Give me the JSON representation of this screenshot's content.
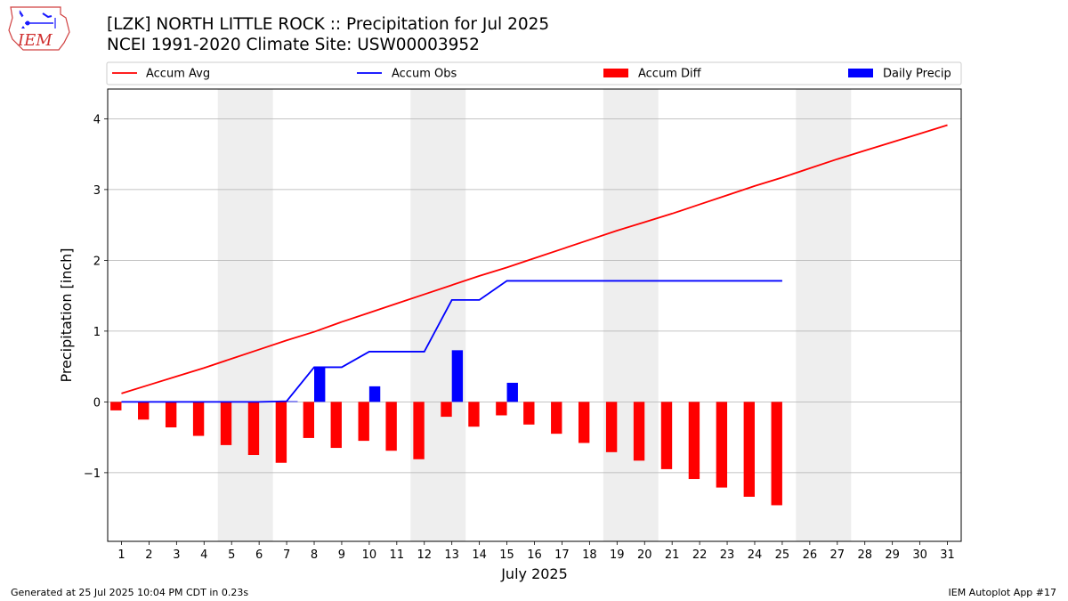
{
  "title": "[LZK] NORTH LITTLE ROCK :: Precipitation for Jul 2025",
  "subtitle": "NCEI 1991-2020 Climate Site: USW00003952",
  "footer_left": "Generated at 25 Jul 2025 10:04 PM CDT in 0.23s",
  "footer_right": "IEM Autoplot App #17",
  "logo_text": "IEM",
  "chart_data": {
    "type": "bar",
    "xlabel": "July 2025",
    "ylabel": "Precipitation [inch]",
    "xlim": [
      0.5,
      31.5
    ],
    "ylim": [
      -1.97,
      4.42
    ],
    "yticks": [
      -1,
      0,
      1,
      2,
      3,
      4
    ],
    "grid": "horizontal",
    "legend_position": "top, horizontal above plot",
    "weekend_shaded_days": [
      5,
      6,
      12,
      13,
      19,
      20,
      26,
      27
    ],
    "days": [
      1,
      2,
      3,
      4,
      5,
      6,
      7,
      8,
      9,
      10,
      11,
      12,
      13,
      14,
      15,
      16,
      17,
      18,
      19,
      20,
      21,
      22,
      23,
      24,
      25,
      26,
      27,
      28,
      29,
      30,
      31
    ],
    "series": [
      {
        "name": "Accum Avg",
        "kind": "line",
        "color": "#ff0000",
        "values": [
          0.12,
          0.24,
          0.36,
          0.48,
          0.61,
          0.74,
          0.87,
          0.99,
          1.13,
          1.26,
          1.39,
          1.52,
          1.65,
          1.78,
          1.9,
          2.03,
          2.16,
          2.29,
          2.42,
          2.54,
          2.66,
          2.79,
          2.92,
          3.05,
          3.17,
          3.3,
          3.43,
          3.55,
          3.67,
          3.79,
          3.91
        ]
      },
      {
        "name": "Accum Obs",
        "kind": "line",
        "color": "#0000ff",
        "values": [
          0.0,
          0.0,
          0.0,
          0.0,
          0.0,
          0.0,
          0.01,
          0.49,
          0.49,
          0.71,
          0.71,
          0.71,
          1.44,
          1.44,
          1.71,
          1.71,
          1.71,
          1.71,
          1.71,
          1.71,
          1.71,
          1.71,
          1.71,
          1.71,
          1.71
        ]
      },
      {
        "name": "Accum Diff",
        "kind": "bar",
        "color": "#ff0000",
        "values": [
          -0.12,
          -0.25,
          -0.36,
          -0.48,
          -0.61,
          -0.75,
          -0.86,
          -0.51,
          -0.65,
          -0.55,
          -0.69,
          -0.81,
          -0.21,
          -0.35,
          -0.19,
          -0.32,
          -0.45,
          -0.58,
          -0.71,
          -0.83,
          -0.95,
          -1.09,
          -1.21,
          -1.34,
          -1.46
        ]
      },
      {
        "name": "Daily Precip",
        "kind": "bar",
        "color": "#0000ff",
        "values": [
          0.0,
          0.0,
          0.0,
          0.0,
          0.0,
          0.0,
          0.01,
          0.49,
          0.0,
          0.22,
          0.0,
          0.0,
          0.73,
          0.0,
          0.27,
          0.0,
          0.0,
          0.0,
          0.0,
          0.0,
          0.0,
          0.0,
          0.0,
          0.0,
          0.0
        ]
      }
    ]
  }
}
